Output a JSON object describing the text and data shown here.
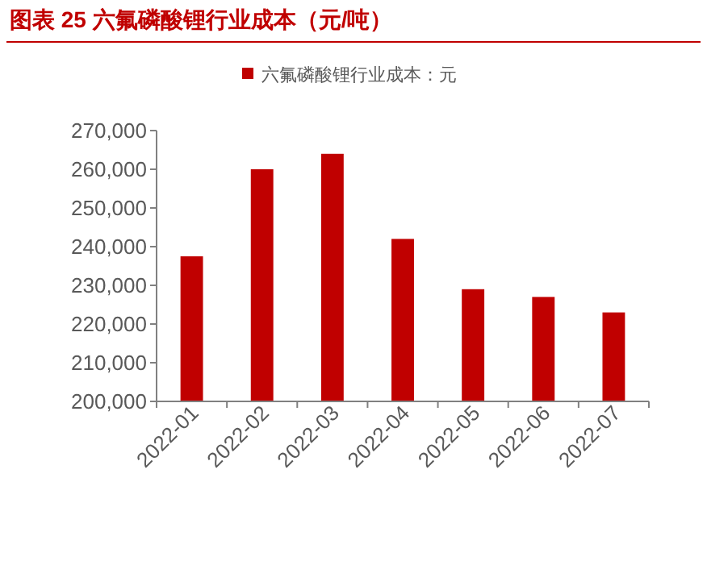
{
  "chart_data": {
    "type": "bar",
    "title": "图表 25  六氟磷酸锂行业成本（元/吨）",
    "categories": [
      "2022-01",
      "2022-02",
      "2022-03",
      "2022-04",
      "2022-05",
      "2022-06",
      "2022-07"
    ],
    "series": [
      {
        "name": "六氟磷酸锂行业成本：元",
        "color": "#c00000",
        "values": [
          237500,
          260000,
          264000,
          242000,
          229000,
          227000,
          223000
        ]
      }
    ],
    "ylim": [
      200000,
      270000
    ],
    "yticks": [
      {
        "value": 200000,
        "label": "200,000"
      },
      {
        "value": 210000,
        "label": "210,000"
      },
      {
        "value": 220000,
        "label": "220,000"
      },
      {
        "value": 230000,
        "label": "230,000"
      },
      {
        "value": 240000,
        "label": "240,000"
      },
      {
        "value": 250000,
        "label": "250,000"
      },
      {
        "value": 260000,
        "label": "260,000"
      },
      {
        "value": 270000,
        "label": "270,000"
      }
    ],
    "grid": false,
    "legend": "top"
  }
}
